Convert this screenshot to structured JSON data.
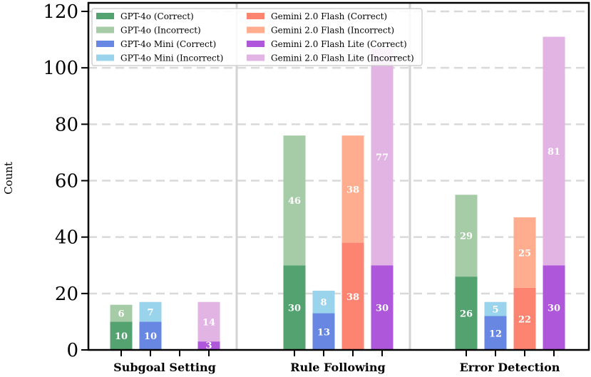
{
  "chart_data": {
    "type": "bar",
    "stacked": true,
    "categories": [
      "Subgoal Setting",
      "Rule Following",
      "Error Detection"
    ],
    "ylabel": "Count",
    "xlabel": "",
    "ylim": [
      0,
      120
    ],
    "yticks": [
      "0",
      "20",
      "40",
      "60",
      "80",
      "100",
      "120"
    ],
    "grid": "horizontal dashed",
    "legend_position": "top-left",
    "models": [
      {
        "correct_label": "GPT-4o (Correct)",
        "incorrect_label": "GPT-4o (Incorrect)",
        "correct_color": "#55a271",
        "incorrect_color": "#a5cca6",
        "correct": [
          10,
          30,
          26
        ],
        "incorrect": [
          6,
          46,
          29
        ]
      },
      {
        "correct_label": "GPT-4o Mini (Correct)",
        "incorrect_label": "GPT-4o Mini (Incorrect)",
        "correct_color": "#6787e3",
        "incorrect_color": "#9ad3ec",
        "correct": [
          10,
          13,
          12
        ],
        "incorrect": [
          7,
          8,
          5
        ]
      },
      {
        "correct_label": "Gemini 2.0 Flash (Correct)",
        "incorrect_label": "Gemini 2.0 Flash (Incorrect)",
        "correct_color": "#fe8472",
        "incorrect_color": "#ffad8e",
        "correct": [
          0,
          38,
          22
        ],
        "incorrect": [
          0,
          38,
          25
        ]
      },
      {
        "correct_label": "Gemini 2.0 Flash Lite (Correct)",
        "incorrect_label": "Gemini 2.0 Flash Lite (Incorrect)",
        "correct_color": "#ae57da",
        "incorrect_color": "#e2b4e3",
        "correct": [
          3,
          30,
          30
        ],
        "incorrect": [
          14,
          77,
          81
        ]
      }
    ]
  }
}
